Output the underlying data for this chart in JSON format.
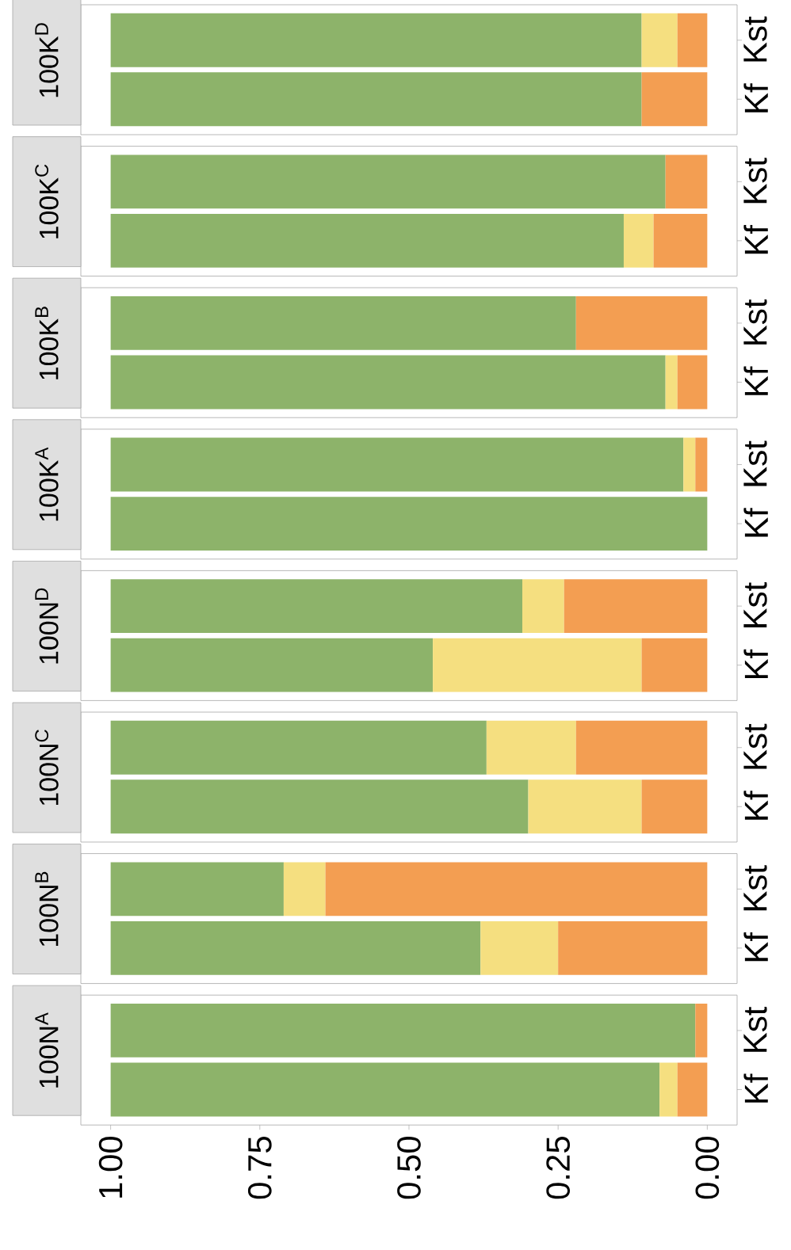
{
  "chart_data": [
    {
      "type": "bar",
      "orientation": "horizontal",
      "stacked": true,
      "title": "100K$^{D}$",
      "categories": [
        "Kst",
        "Kf"
      ],
      "series": [
        {
          "color": "#f39e52",
          "values": [
            0.05,
            0.11
          ]
        },
        {
          "color": "#f5df80",
          "values": [
            0.06,
            0
          ]
        },
        {
          "color": "#8db36a",
          "values": [
            0.89,
            0.89
          ]
        }
      ],
      "xlim": [
        1.05,
        -0.05
      ],
      "tick_labels": "y"
    },
    {
      "type": "bar",
      "orientation": "horizontal",
      "stacked": true,
      "title": "100K$^{C}$",
      "categories": [
        "Kst",
        "Kf"
      ],
      "series": [
        {
          "color": "#f39e52",
          "values": [
            0.07,
            0.09
          ]
        },
        {
          "color": "#f5df80",
          "values": [
            0,
            0.05
          ]
        },
        {
          "color": "#8db36a",
          "values": [
            0.93,
            0.86
          ]
        }
      ],
      "xlim": [
        1.05,
        -0.05
      ],
      "tick_labels": "y"
    },
    {
      "type": "bar",
      "orientation": "horizontal",
      "stacked": true,
      "title": "100K$^{B}$",
      "categories": [
        "Kst",
        "Kf"
      ],
      "series": [
        {
          "color": "#f39e52",
          "values": [
            0.22,
            0.05
          ]
        },
        {
          "color": "#f5df80",
          "values": [
            0,
            0.02
          ]
        },
        {
          "color": "#8db36a",
          "values": [
            0.78,
            0.93
          ]
        }
      ],
      "xlim": [
        1.05,
        -0.05
      ],
      "tick_labels": "y"
    },
    {
      "type": "bar",
      "orientation": "horizontal",
      "stacked": true,
      "title": "100K$^{A}$",
      "categories": [
        "Kst",
        "Kf"
      ],
      "series": [
        {
          "color": "#f39e52",
          "values": [
            0.02,
            0
          ]
        },
        {
          "color": "#f5df80",
          "values": [
            0.02,
            0
          ]
        },
        {
          "color": "#8db36a",
          "values": [
            0.96,
            1.0
          ]
        }
      ],
      "xlim": [
        1.05,
        -0.05
      ],
      "tick_labels": "y"
    },
    {
      "type": "bar",
      "orientation": "horizontal",
      "stacked": true,
      "title": "100N$^{D}$",
      "categories": [
        "Kst",
        "Kf"
      ],
      "series": [
        {
          "color": "#f39e52",
          "values": [
            0.24,
            0.11
          ]
        },
        {
          "color": "#f5df80",
          "values": [
            0.07,
            0.35
          ]
        },
        {
          "color": "#8db36a",
          "values": [
            0.69,
            0.54
          ]
        }
      ],
      "xlim": [
        1.05,
        -0.05
      ],
      "tick_labels": "y"
    },
    {
      "type": "bar",
      "orientation": "horizontal",
      "stacked": true,
      "title": "100N$^{C}$",
      "categories": [
        "Kst",
        "Kf"
      ],
      "series": [
        {
          "color": "#f39e52",
          "values": [
            0.22,
            0.11
          ]
        },
        {
          "color": "#f5df80",
          "values": [
            0.15,
            0.19
          ]
        },
        {
          "color": "#8db36a",
          "values": [
            0.63,
            0.7
          ]
        }
      ],
      "xlim": [
        1.05,
        -0.05
      ],
      "tick_labels": "y"
    },
    {
      "type": "bar",
      "orientation": "horizontal",
      "stacked": true,
      "title": "100N$^{B}$",
      "categories": [
        "Kst",
        "Kf"
      ],
      "series": [
        {
          "color": "#f39e52",
          "values": [
            0.64,
            0.25
          ]
        },
        {
          "color": "#f5df80",
          "values": [
            0.07,
            0.13
          ]
        },
        {
          "color": "#8db36a",
          "values": [
            0.29,
            0.62
          ]
        }
      ],
      "xlim": [
        1.05,
        -0.05
      ],
      "tick_labels": "y"
    },
    {
      "type": "bar",
      "orientation": "horizontal",
      "stacked": true,
      "title": "100N$^{A}$",
      "categories": [
        "Kst",
        "Kf"
      ],
      "series": [
        {
          "color": "#f39e52",
          "values": [
            0.02,
            0.05
          ]
        },
        {
          "color": "#f5df80",
          "values": [
            0,
            0.03
          ]
        },
        {
          "color": "#8db36a",
          "values": [
            0.98,
            0.92
          ]
        }
      ],
      "xlim": [
        1.05,
        -0.05
      ],
      "xticks": [
        {
          "value": 1,
          "label": "1.00"
        },
        {
          "value": 0.75,
          "label": "0.75"
        },
        {
          "value": 0.5,
          "label": "0.50"
        },
        {
          "value": 0.25,
          "label": "0.25"
        },
        {
          "value": 0,
          "label": "0.00"
        }
      ]
    }
  ]
}
